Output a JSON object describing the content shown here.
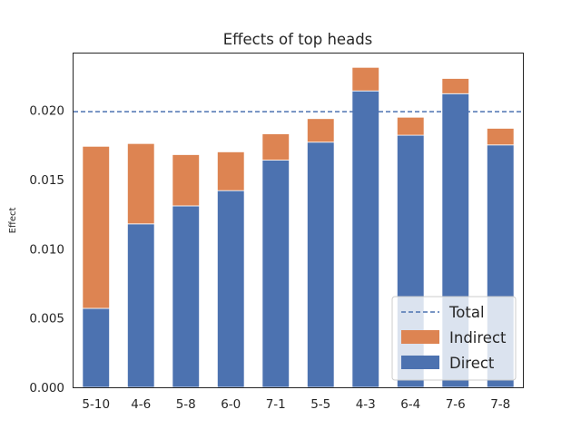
{
  "chart_data": {
    "type": "bar",
    "stacked": true,
    "title": "Effects of top heads",
    "xlabel": "",
    "ylabel": "Effect",
    "categories": [
      "5-10",
      "4-6",
      "5-8",
      "6-0",
      "7-1",
      "5-5",
      "4-3",
      "6-4",
      "7-6",
      "7-8"
    ],
    "series": [
      {
        "name": "Direct",
        "values": [
          0.0057,
          0.0118,
          0.0131,
          0.0142,
          0.0164,
          0.0177,
          0.0214,
          0.0182,
          0.0212,
          0.0175
        ],
        "color": "#4c72b0"
      },
      {
        "name": "Indirect",
        "values": [
          0.0117,
          0.0058,
          0.0037,
          0.0028,
          0.0019,
          0.0017,
          0.0017,
          0.0013,
          0.0011,
          0.0012
        ],
        "color": "#dd8452"
      }
    ],
    "reference_line": {
      "name": "Total",
      "value": 0.0199,
      "style": "dashed",
      "color": "#4c72b0"
    },
    "ylim": [
      0,
      0.0241
    ],
    "yticks": [
      "0.000",
      "0.005",
      "0.010",
      "0.015",
      "0.020"
    ],
    "ytick_values": [
      0,
      0.005,
      0.01,
      0.015,
      0.02
    ],
    "grid": false,
    "legend": {
      "placement": "bottom-right",
      "entries": [
        "Total",
        "Indirect",
        "Direct"
      ]
    }
  }
}
